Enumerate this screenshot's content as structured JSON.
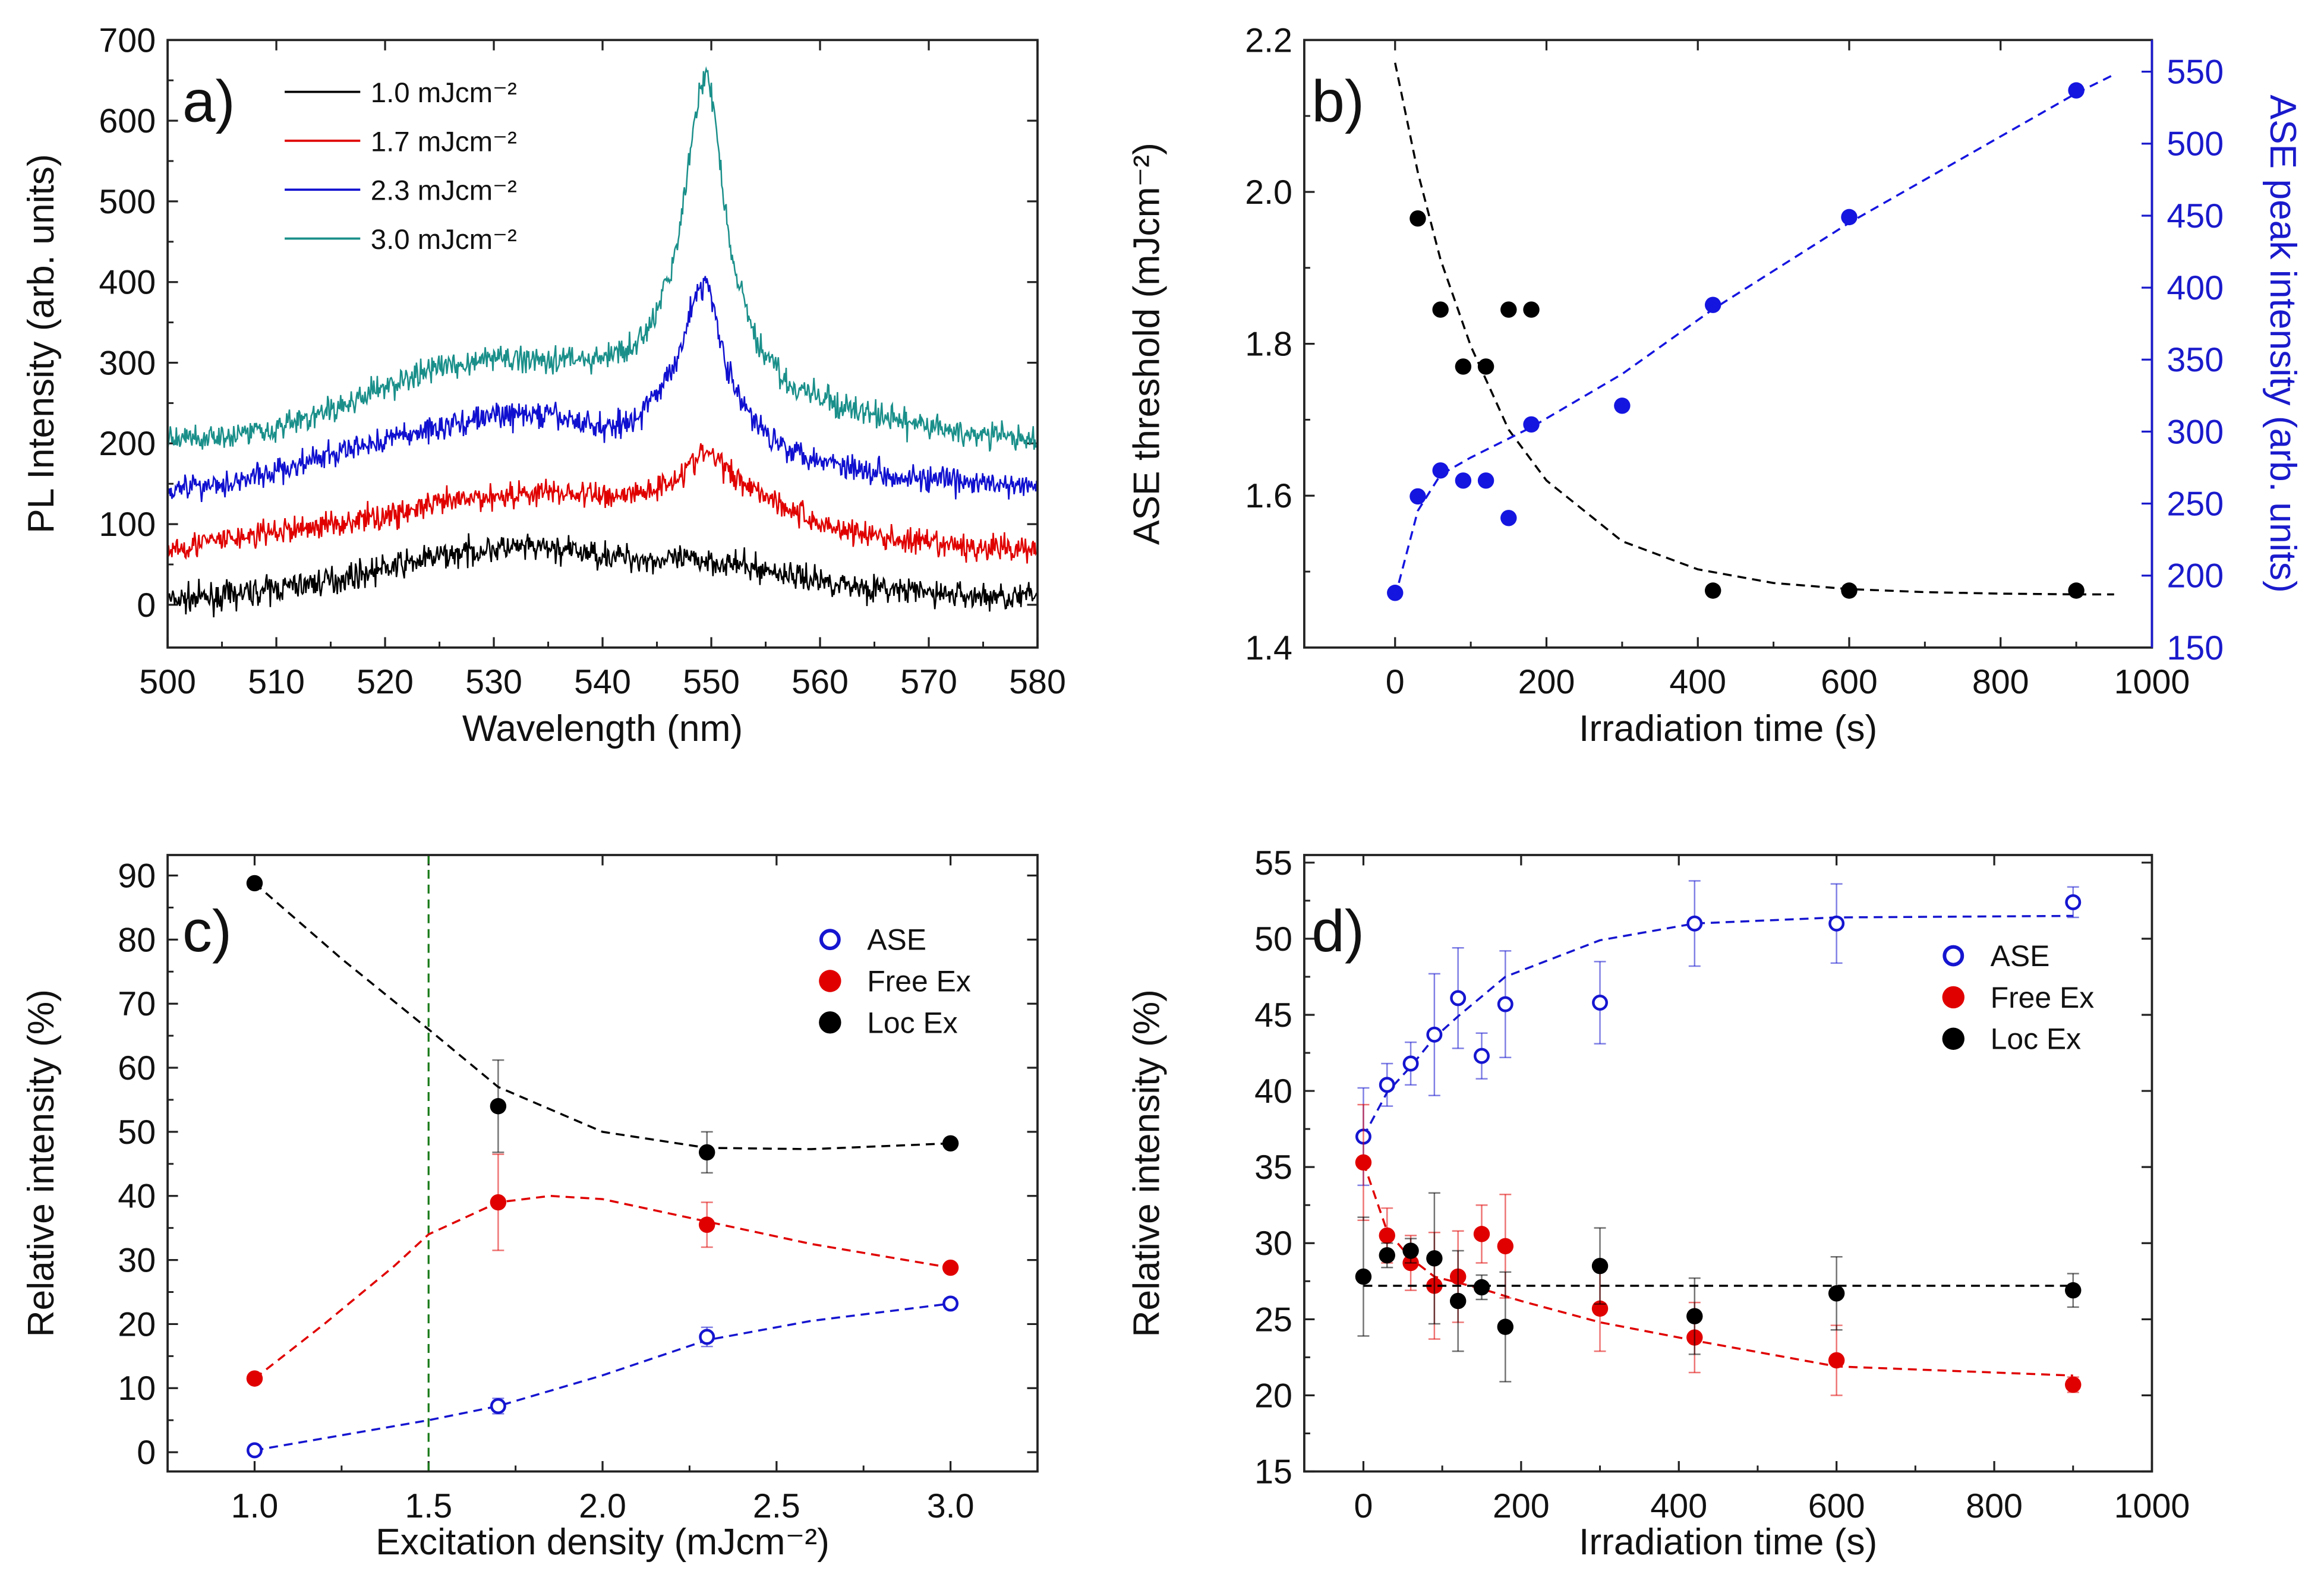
{
  "chart_data": [
    {
      "panel_label": "a)",
      "type": "line",
      "xlabel": "Wavelength (nm)",
      "ylabel": "PL Intensity (arb. units)",
      "xlim": [
        500,
        580
      ],
      "ylim": [
        -53,
        700
      ],
      "xticks": [
        500,
        510,
        520,
        530,
        540,
        550,
        560,
        570,
        580
      ],
      "xtick_labels": [
        "500",
        "510",
        "520",
        "530",
        "540",
        "550",
        "560",
        "570",
        "580"
      ],
      "yticks": [
        0,
        100,
        200,
        300,
        400,
        500,
        600,
        700
      ],
      "ytick_labels": [
        "0",
        "100",
        "200",
        "300",
        "400",
        "500",
        "600",
        "700"
      ],
      "legend": "top-left",
      "series": [
        {
          "name": "1.0 mJcm⁻²",
          "color": "#000000",
          "x": [
            500,
            505,
            510,
            515,
            520,
            525,
            530,
            535,
            540,
            543,
            545,
            547,
            548,
            549,
            549.5,
            550,
            551,
            552,
            554,
            557,
            560,
            565,
            570,
            575,
            580
          ],
          "y": [
            5,
            10,
            20,
            30,
            45,
            60,
            70,
            70,
            62,
            58,
            55,
            55,
            55,
            56,
            56,
            55,
            52,
            50,
            45,
            38,
            30,
            20,
            15,
            10,
            10
          ]
        },
        {
          "name": "1.7 mJcm⁻²",
          "color": "#e00000",
          "x": [
            500,
            505,
            510,
            515,
            520,
            525,
            530,
            535,
            540,
            543,
            545,
            547,
            548,
            549,
            549.5,
            550,
            551,
            552,
            554,
            557,
            560,
            565,
            570,
            575,
            580
          ],
          "y": [
            70,
            80,
            90,
            100,
            110,
            125,
            135,
            140,
            135,
            138,
            145,
            160,
            172,
            185,
            190,
            185,
            175,
            160,
            145,
            120,
            100,
            85,
            75,
            70,
            70
          ]
        },
        {
          "name": "2.3 mJcm⁻²",
          "color": "#1010d0",
          "x": [
            500,
            505,
            510,
            515,
            520,
            525,
            530,
            535,
            540,
            543,
            545,
            547,
            548,
            549,
            549.5,
            550,
            551,
            552,
            554,
            557,
            560,
            565,
            570,
            575,
            580
          ],
          "y": [
            145,
            150,
            165,
            185,
            205,
            220,
            235,
            235,
            220,
            230,
            260,
            310,
            360,
            395,
            400,
            385,
            320,
            270,
            225,
            195,
            180,
            165,
            155,
            150,
            145
          ]
        },
        {
          "name": "3.0 mJcm⁻²",
          "color": "#1a8f8a",
          "x": [
            500,
            505,
            510,
            515,
            520,
            525,
            530,
            535,
            540,
            543,
            545,
            547,
            548,
            549,
            549.5,
            550,
            551,
            552,
            554,
            557,
            560,
            565,
            570,
            575,
            580
          ],
          "y": [
            205,
            210,
            220,
            240,
            270,
            295,
            305,
            305,
            305,
            320,
            360,
            450,
            560,
            640,
            660,
            640,
            520,
            420,
            330,
            275,
            255,
            235,
            220,
            210,
            205
          ]
        }
      ]
    },
    {
      "panel_label": "b)",
      "type": "scatter",
      "xlabel": "Irradiation time (s)",
      "ylabel": "ASE threshold (mJcm⁻²)",
      "ylabel_right": "ASE peak intensity (arb. units)",
      "xlim": [
        -120,
        1000
      ],
      "ylim": [
        1.4,
        2.2
      ],
      "ylim_right": [
        150,
        572
      ],
      "xticks": [
        0,
        200,
        400,
        600,
        800,
        1000
      ],
      "xtick_labels": [
        "0",
        "200",
        "400",
        "600",
        "800",
        "1000"
      ],
      "yticks": [
        1.4,
        1.6,
        1.8,
        2.0,
        2.2
      ],
      "ytick_labels": [
        "1.4",
        "1.6",
        "1.8",
        "2.0",
        "2.2"
      ],
      "yticks_right": [
        150,
        200,
        250,
        300,
        350,
        400,
        450,
        500,
        550
      ],
      "ytick_labels_right": [
        "150",
        "200",
        "250",
        "300",
        "350",
        "400",
        "450",
        "500",
        "550"
      ],
      "right_axis_color": "#1a1acc",
      "series": [
        {
          "axis": "left",
          "color": "#000000",
          "marker": "filled",
          "x": [
            30,
            60,
            90,
            120,
            150,
            180,
            420,
            600,
            900
          ],
          "y": [
            1.965,
            1.845,
            1.77,
            1.77,
            1.845,
            1.845,
            1.475,
            1.475,
            1.475
          ],
          "fit": {
            "x": [
              0,
              30,
              60,
              100,
              150,
              200,
              300,
              400,
              500,
              600,
              700,
              800,
              900,
              950
            ],
            "y": [
              2.17,
              2.026,
              1.911,
              1.797,
              1.687,
              1.62,
              1.54,
              1.503,
              1.485,
              1.477,
              1.473,
              1.471,
              1.47,
              1.47
            ]
          }
        },
        {
          "axis": "right",
          "color": "#1515e0",
          "marker": "filled",
          "x": [
            0,
            30,
            60,
            90,
            120,
            150,
            180,
            300,
            420,
            600,
            900
          ],
          "y": [
            188,
            255,
            273,
            266,
            266,
            240,
            305,
            318,
            388,
            449,
            537
          ],
          "fit": {
            "x": [
              0,
              30,
              60,
              100,
              180,
              300,
              420,
              600,
              900,
              950
            ],
            "y": [
              185,
              245,
              270,
              282,
              303,
              340,
              385,
              445,
              535,
              548
            ]
          }
        }
      ]
    },
    {
      "panel_label": "c)",
      "type": "scatter",
      "xlabel": "Excitation density (mJcm⁻²)",
      "ylabel": "Relative intensity (%)",
      "xlim": [
        0.75,
        3.25
      ],
      "ylim": [
        -3,
        93.2
      ],
      "xticks": [
        1.0,
        1.5,
        2.0,
        2.5,
        3.0
      ],
      "xtick_labels": [
        "1.0",
        "1.5",
        "2.0",
        "2.5",
        "3.0"
      ],
      "yticks": [
        0,
        10,
        20,
        30,
        40,
        50,
        60,
        70,
        80,
        90
      ],
      "ytick_labels": [
        "0",
        "10",
        "20",
        "30",
        "40",
        "50",
        "60",
        "70",
        "80",
        "90"
      ],
      "vline": {
        "x": 1.5,
        "color": "#1a7a1a"
      },
      "legend": "top-right",
      "series": [
        {
          "name": "ASE",
          "color": "#1515d0",
          "marker": "open",
          "x": [
            1.0,
            1.7,
            2.3,
            3.0
          ],
          "y": [
            0.3,
            7.2,
            18,
            23.2
          ],
          "err": [
            0.8,
            1.2,
            1.5,
            0.8
          ],
          "fit": {
            "x": [
              1.0,
              1.5,
              1.7,
              2.0,
              2.3,
              2.6,
              3.0
            ],
            "y": [
              0.3,
              5,
              7.2,
              12,
              17.5,
              20.5,
              23.2
            ]
          }
        },
        {
          "name": "Free Ex",
          "color": "#e00000",
          "marker": "filled",
          "x": [
            1.0,
            1.7,
            2.3,
            3.0
          ],
          "y": [
            11.5,
            39,
            35.5,
            28.8
          ],
          "err": [
            0.5,
            7.5,
            3.5,
            0.5
          ],
          "fit": {
            "x": [
              1.0,
              1.2,
              1.4,
              1.5,
              1.7,
              1.85,
              2.0,
              2.3,
              2.6,
              3.0
            ],
            "y": [
              11.5,
              20,
              29,
              34,
              39,
              40,
              39.5,
              36,
              32.5,
              28.8
            ]
          }
        },
        {
          "name": "Loc Ex",
          "color": "#000000",
          "marker": "filled",
          "x": [
            1.0,
            1.7,
            2.3,
            3.0
          ],
          "y": [
            88.8,
            54,
            46.8,
            48.2
          ],
          "err": [
            0.5,
            7.2,
            3.2,
            0.5
          ],
          "fit": {
            "x": [
              1.0,
              1.25,
              1.5,
              1.7,
              2.0,
              2.3,
              2.6,
              3.0
            ],
            "y": [
              88.8,
              77,
              66,
              57,
              50,
              47.5,
              47.3,
              48.2
            ]
          }
        }
      ]
    },
    {
      "panel_label": "d)",
      "type": "scatter",
      "xlabel": "Irradiation time (s)",
      "ylabel": "Relative intensity (%)",
      "xlim": [
        -75,
        1000
      ],
      "ylim": [
        15,
        55.5
      ],
      "xticks": [
        0,
        200,
        400,
        600,
        800,
        1000
      ],
      "xtick_labels": [
        "0",
        "200",
        "400",
        "600",
        "800",
        "1000"
      ],
      "yticks": [
        15,
        20,
        25,
        30,
        35,
        40,
        45,
        50,
        55
      ],
      "ytick_labels": [
        "15",
        "20",
        "25",
        "30",
        "35",
        "40",
        "45",
        "50",
        "55"
      ],
      "legend": "top-right",
      "series": [
        {
          "name": "ASE",
          "color": "#1515d0",
          "marker": "open",
          "x": [
            0,
            30,
            60,
            90,
            120,
            150,
            180,
            300,
            420,
            600,
            900
          ],
          "y": [
            37,
            40.4,
            41.8,
            43.7,
            46.1,
            42.3,
            45.7,
            45.8,
            51,
            51,
            52.4
          ],
          "err": [
            3.2,
            1.4,
            1.4,
            4,
            3.3,
            1.5,
            3.5,
            2.7,
            2.8,
            2.6,
            1
          ],
          "fit": {
            "x": [
              0,
              30,
              60,
              90,
              120,
              180,
              300,
              420,
              600,
              900
            ],
            "y": [
              37,
              39.9,
              41.6,
              43.5,
              44.9,
              47.5,
              49.9,
              51.0,
              51.4,
              51.5
            ]
          }
        },
        {
          "name": "Free Ex",
          "color": "#e00000",
          "marker": "filled",
          "x": [
            0,
            30,
            60,
            90,
            120,
            150,
            180,
            300,
            420,
            600,
            900
          ],
          "y": [
            35.3,
            30.5,
            28.7,
            27.2,
            27.8,
            30.6,
            29.8,
            25.7,
            23.8,
            22.3,
            20.7
          ],
          "err": [
            3.8,
            1.8,
            1.8,
            3.5,
            3,
            1.9,
            3.4,
            2.8,
            2.3,
            2.3,
            0.5
          ],
          "fit": {
            "x": [
              0,
              30,
              60,
              90,
              150,
              200,
              300,
              420,
              600,
              900
            ],
            "y": [
              35.3,
              30.8,
              29,
              27.8,
              27,
              26.2,
              24.8,
              23.6,
              21.9,
              21.3
            ]
          }
        },
        {
          "name": "Loc Ex",
          "color": "#000000",
          "marker": "filled",
          "x": [
            0,
            30,
            60,
            90,
            120,
            150,
            180,
            300,
            420,
            600,
            900
          ],
          "y": [
            27.8,
            29.2,
            29.5,
            29,
            26.2,
            27.1,
            24.5,
            28.5,
            25.2,
            26.7,
            26.9
          ],
          "err": [
            3.9,
            0.8,
            0.8,
            4.3,
            3.3,
            0.8,
            3.6,
            2.5,
            2.5,
            2.4,
            1.1
          ],
          "fit": {
            "x": [
              0,
              900
            ],
            "y": [
              27.2,
              27.2
            ]
          }
        }
      ]
    }
  ]
}
